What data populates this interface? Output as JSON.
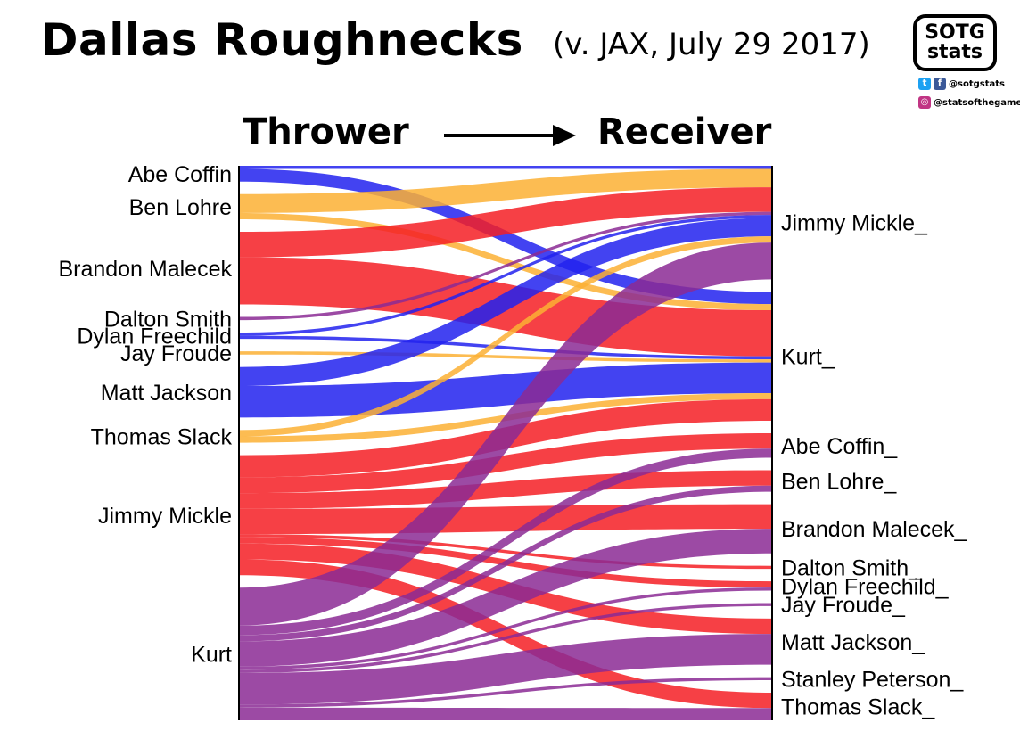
{
  "title": "Dallas Roughnecks",
  "subtitle": "(v. JAX, July 29 2017)",
  "logo": {
    "line1": "SOTG",
    "line2": "stats",
    "twitter": "@sotgstats",
    "instagram": "@statsofthegame"
  },
  "headers": {
    "left": "Thrower",
    "right": "Receiver"
  },
  "colors": {
    "blue": "#2222ee",
    "orange": "#fbb034",
    "red": "#f41e24",
    "purple": "#8b2a94"
  },
  "chart_data": {
    "type": "sankey",
    "throwers": [
      {
        "name": "Abe Coffin",
        "color": "blue"
      },
      {
        "name": "Ben Lohre",
        "color": "orange"
      },
      {
        "name": "Brandon Malecek",
        "color": "red"
      },
      {
        "name": "Dalton Smith",
        "color": "purple"
      },
      {
        "name": "Dylan Freechild",
        "color": "blue"
      },
      {
        "name": "Jay Froude",
        "color": "orange"
      },
      {
        "name": "Matt Jackson",
        "color": "blue"
      },
      {
        "name": "Thomas Slack",
        "color": "orange"
      },
      {
        "name": "Jimmy Mickle",
        "color": "red"
      },
      {
        "name": "Kurt",
        "color": "purple"
      }
    ],
    "receivers": [
      "Jimmy Mickle_",
      "Kurt_",
      "Abe Coffin_",
      "Ben Lohre_",
      "Brandon Malecek_",
      "Dalton Smith_",
      "Dylan Freechild_",
      "Jay Froude_",
      "Matt Jackson_",
      "Stanley Peterson_",
      "Thomas Slack_"
    ],
    "links": [
      {
        "from": "Abe Coffin",
        "to": "Jimmy Mickle_",
        "value": 1
      },
      {
        "from": "Abe Coffin",
        "to": "Kurt_",
        "value": 4
      },
      {
        "from": "Ben Lohre",
        "to": "Jimmy Mickle_",
        "value": 6
      },
      {
        "from": "Ben Lohre",
        "to": "Kurt_",
        "value": 2
      },
      {
        "from": "Brandon Malecek",
        "to": "Jimmy Mickle_",
        "value": 8
      },
      {
        "from": "Brandon Malecek",
        "to": "Kurt_",
        "value": 15
      },
      {
        "from": "Dalton Smith",
        "to": "Jimmy Mickle_",
        "value": 1
      },
      {
        "from": "Dylan Freechild",
        "to": "Jimmy Mickle_",
        "value": 1
      },
      {
        "from": "Dylan Freechild",
        "to": "Kurt_",
        "value": 1
      },
      {
        "from": "Jay Froude",
        "to": "Kurt_",
        "value": 1
      },
      {
        "from": "Matt Jackson",
        "to": "Jimmy Mickle_",
        "value": 6
      },
      {
        "from": "Matt Jackson",
        "to": "Kurt_",
        "value": 10
      },
      {
        "from": "Thomas Slack",
        "to": "Jimmy Mickle_",
        "value": 2
      },
      {
        "from": "Thomas Slack",
        "to": "Kurt_",
        "value": 2
      },
      {
        "from": "Jimmy Mickle",
        "to": "Kurt_",
        "value": 7
      },
      {
        "from": "Jimmy Mickle",
        "to": "Abe Coffin_",
        "value": 5
      },
      {
        "from": "Jimmy Mickle",
        "to": "Ben Lohre_",
        "value": 5
      },
      {
        "from": "Jimmy Mickle",
        "to": "Brandon Malecek_",
        "value": 8
      },
      {
        "from": "Jimmy Mickle",
        "to": "Dalton Smith_",
        "value": 1
      },
      {
        "from": "Jimmy Mickle",
        "to": "Dylan Freechild_",
        "value": 2
      },
      {
        "from": "Jimmy Mickle",
        "to": "Matt Jackson_",
        "value": 5
      },
      {
        "from": "Jimmy Mickle",
        "to": "Thomas Slack_",
        "value": 5
      },
      {
        "from": "Kurt",
        "to": "Jimmy Mickle_",
        "value": 12
      },
      {
        "from": "Kurt",
        "to": "Abe Coffin_",
        "value": 3
      },
      {
        "from": "Kurt",
        "to": "Ben Lohre_",
        "value": 2
      },
      {
        "from": "Kurt",
        "to": "Brandon Malecek_",
        "value": 8
      },
      {
        "from": "Kurt",
        "to": "Dylan Freechild_",
        "value": 1
      },
      {
        "from": "Kurt",
        "to": "Jay Froude_",
        "value": 1
      },
      {
        "from": "Kurt",
        "to": "Matt Jackson_",
        "value": 10
      },
      {
        "from": "Kurt",
        "to": "Stanley Peterson_",
        "value": 1
      },
      {
        "from": "Kurt",
        "to": "Thomas Slack_",
        "value": 4
      }
    ]
  }
}
